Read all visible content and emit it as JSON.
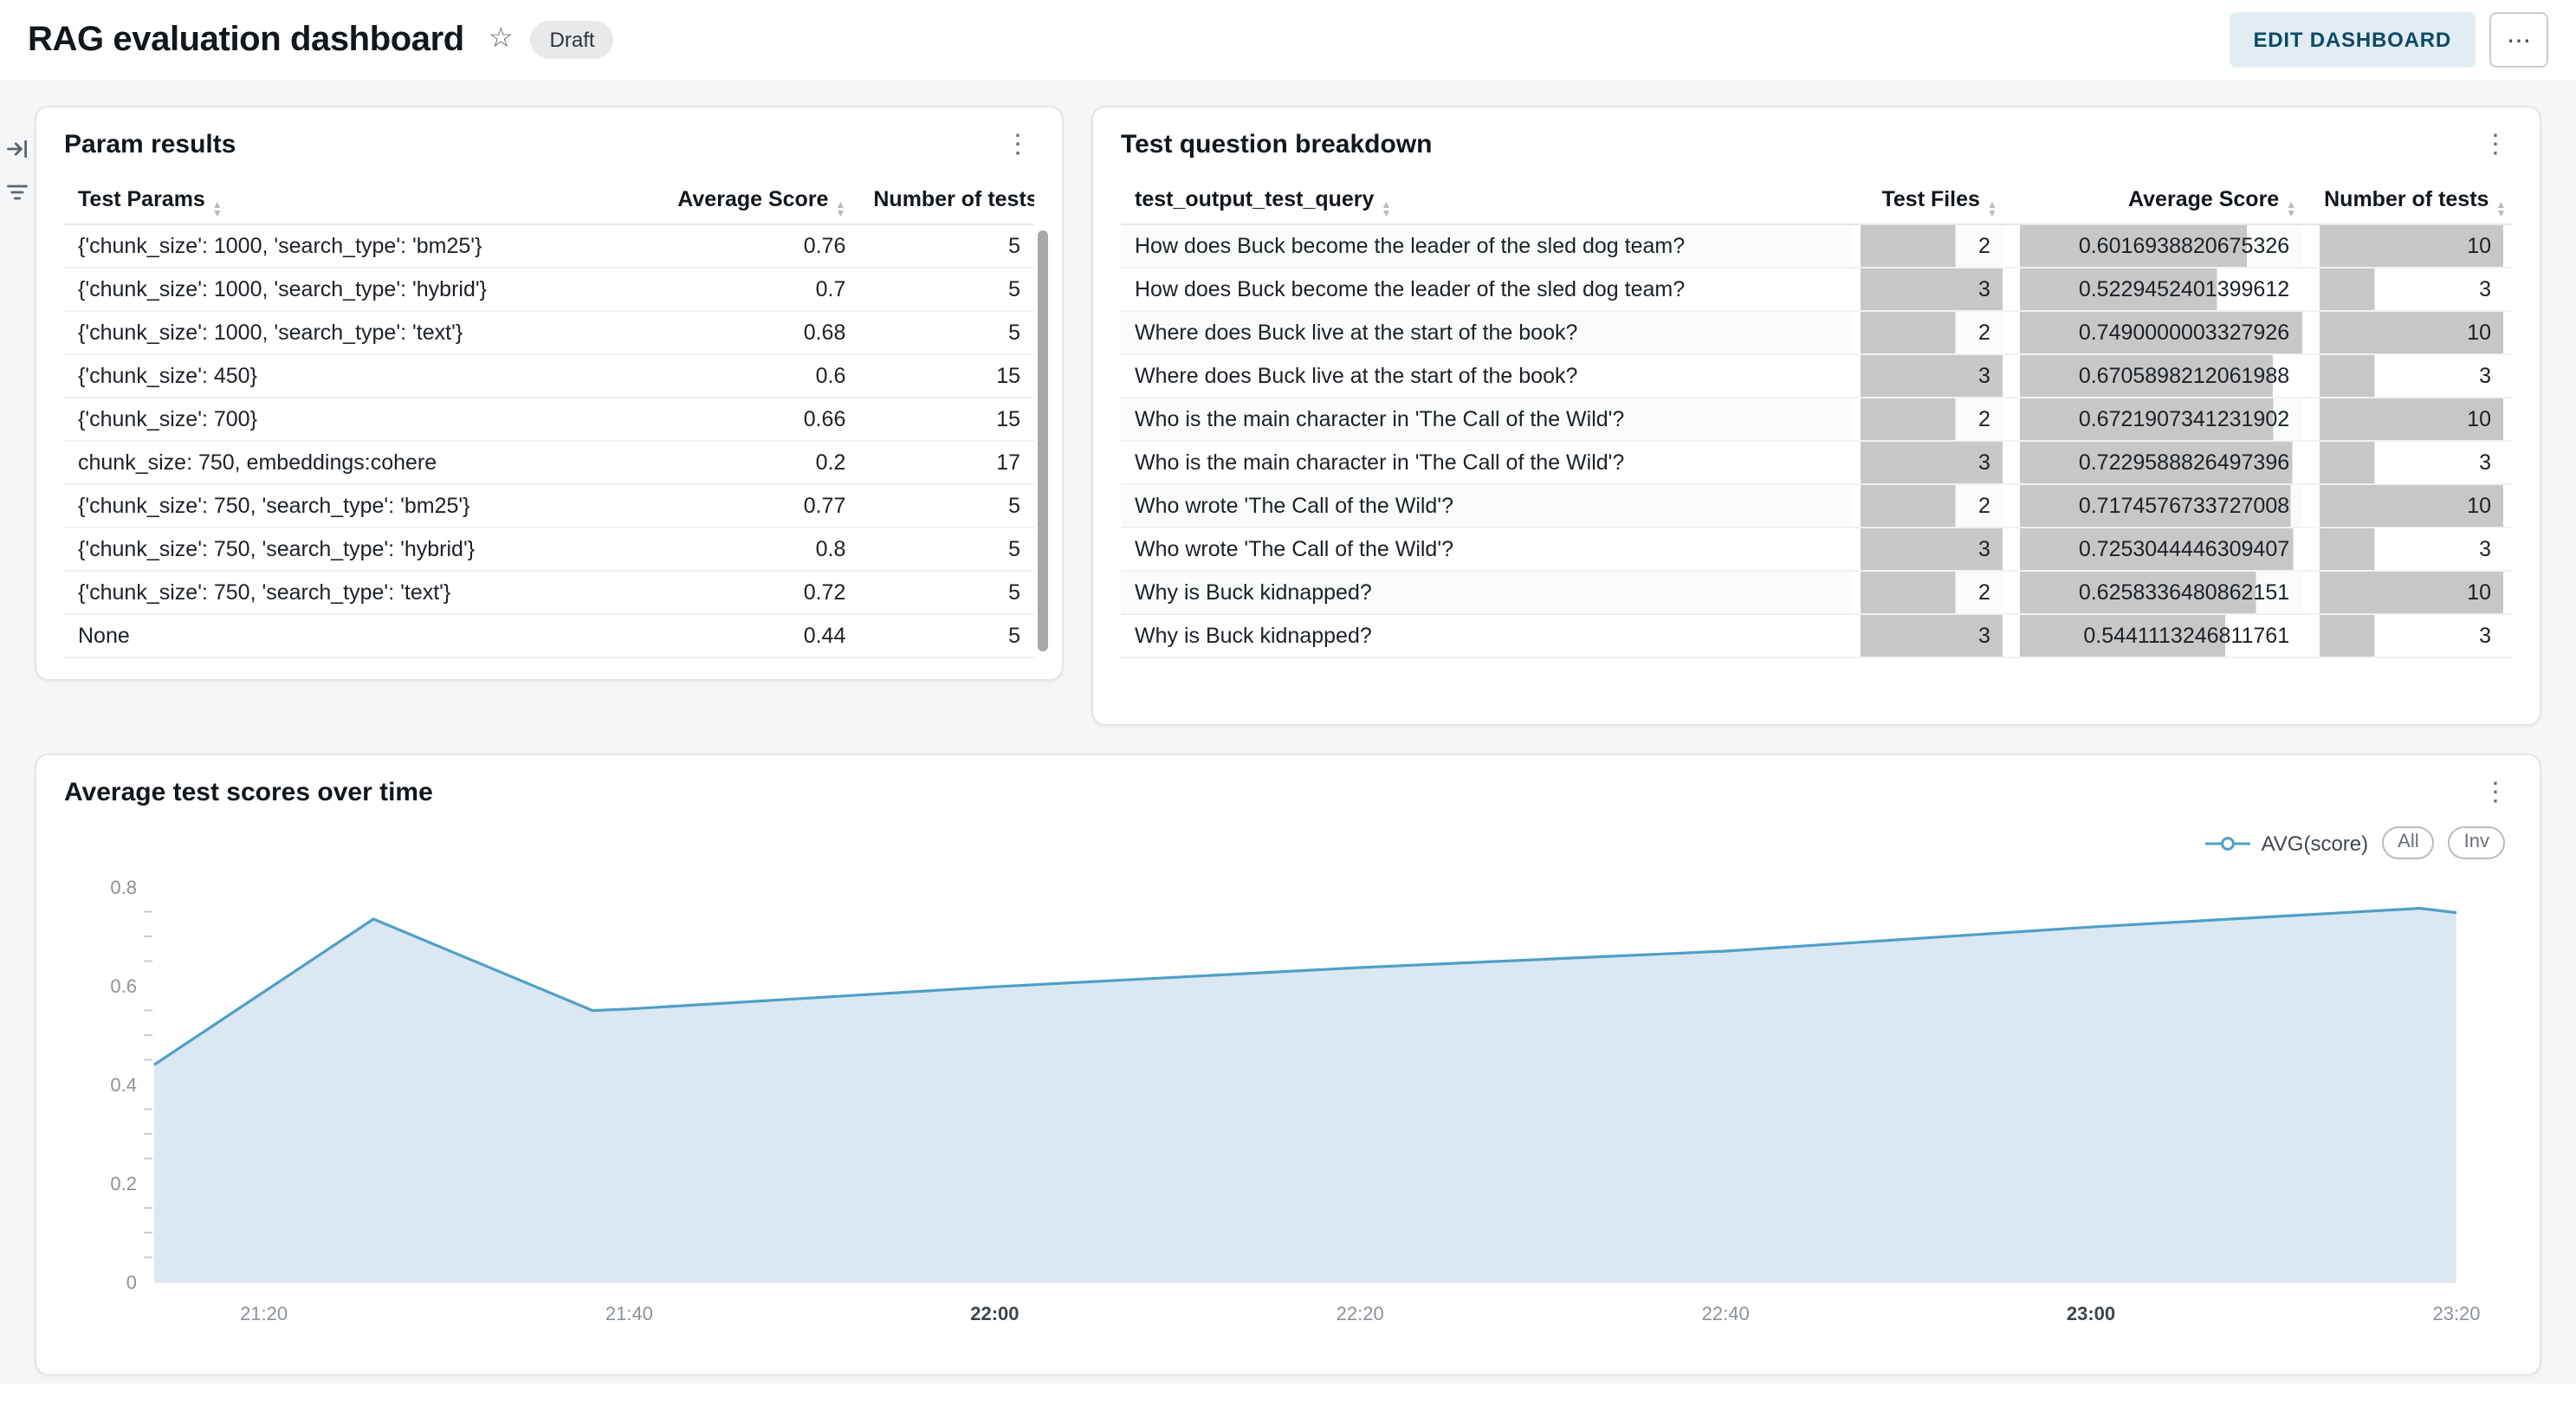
{
  "header": {
    "title": "RAG evaluation dashboard",
    "status_badge": "Draft",
    "edit_button": "EDIT DASHBOARD"
  },
  "param_results": {
    "title": "Param results",
    "columns": [
      "Test Params",
      "Average Score",
      "Number of tests"
    ],
    "rows": [
      [
        "{'chunk_size': 1000, 'search_type': 'bm25'}",
        "0.76",
        "5"
      ],
      [
        "{'chunk_size': 1000, 'search_type': 'hybrid'}",
        "0.7",
        "5"
      ],
      [
        "{'chunk_size': 1000, 'search_type': 'text'}",
        "0.68",
        "5"
      ],
      [
        "{'chunk_size': 450}",
        "0.6",
        "15"
      ],
      [
        "{'chunk_size': 700}",
        "0.66",
        "15"
      ],
      [
        "chunk_size: 750, embeddings:cohere",
        "0.2",
        "17"
      ],
      [
        "{'chunk_size': 750, 'search_type': 'bm25'}",
        "0.77",
        "5"
      ],
      [
        "{'chunk_size': 750, 'search_type': 'hybrid'}",
        "0.8",
        "5"
      ],
      [
        "{'chunk_size': 750, 'search_type': 'text'}",
        "0.72",
        "5"
      ],
      [
        "None",
        "0.44",
        "5"
      ]
    ]
  },
  "question_breakdown": {
    "title": "Test question breakdown",
    "columns": [
      "test_output_test_query",
      "Test Files",
      "Average Score",
      "Number of tests"
    ],
    "bar_color": "#c7c7c7",
    "bar_max": [
      null,
      3,
      0.7490000003327926,
      10
    ],
    "rows": [
      [
        "How does Buck become the leader of the sled dog team?",
        "2",
        "0.6016938820675326",
        "10"
      ],
      [
        "How does Buck become the leader of the sled dog team?",
        "3",
        "0.5229452401399612",
        "3"
      ],
      [
        "Where does Buck live at the start of the book?",
        "2",
        "0.7490000003327926",
        "10"
      ],
      [
        "Where does Buck live at the start of the book?",
        "3",
        "0.6705898212061988",
        "3"
      ],
      [
        "Who is the main character in 'The Call of the Wild'?",
        "2",
        "0.6721907341231902",
        "10"
      ],
      [
        "Who is the main character in 'The Call of the Wild'?",
        "3",
        "0.7229588826497396",
        "3"
      ],
      [
        "Who wrote 'The Call of the Wild'?",
        "2",
        "0.7174576733727008",
        "10"
      ],
      [
        "Who wrote 'The Call of the Wild'?",
        "3",
        "0.7253044446309407",
        "3"
      ],
      [
        "Why is Buck kidnapped?",
        "2",
        "0.6258336480862151",
        "10"
      ],
      [
        "Why is Buck kidnapped?",
        "3",
        "0.5441113246811761",
        "3"
      ]
    ]
  },
  "chart_card": {
    "title": "Average test scores over time",
    "legend": {
      "series_label": "AVG(score)",
      "toggle_all": "All",
      "toggle_inv": "Inv"
    }
  },
  "chart_data": {
    "type": "area",
    "title": "Average test scores over time",
    "xlabel": "",
    "ylabel": "",
    "x_domain": [
      "21:14",
      "23:20"
    ],
    "ylim": [
      0,
      0.8
    ],
    "y_ticks": [
      0,
      0.2,
      0.4,
      0.6,
      0.8
    ],
    "y_minor_step": 0.05,
    "x_ticks": [
      "21:20",
      "21:40",
      "22:00",
      "22:20",
      "22:40",
      "23:00",
      "23:20"
    ],
    "x_ticks_bold": [
      "22:00",
      "23:00"
    ],
    "legend_position": "top-right",
    "grid": false,
    "series": [
      {
        "name": "AVG(score)",
        "points": [
          {
            "t": "21:14",
            "v": 0.44
          },
          {
            "t": "21:26",
            "v": 0.735
          },
          {
            "t": "21:38",
            "v": 0.55
          },
          {
            "t": "21:40",
            "v": 0.553
          },
          {
            "t": "22:00",
            "v": 0.598
          },
          {
            "t": "22:20",
            "v": 0.637
          },
          {
            "t": "22:40",
            "v": 0.67
          },
          {
            "t": "23:00",
            "v": 0.719
          },
          {
            "t": "23:18",
            "v": 0.757
          },
          {
            "t": "23:20",
            "v": 0.748
          }
        ]
      }
    ],
    "colors": {
      "line": "#4f9fc8",
      "fill": "#dbe8f2"
    }
  }
}
